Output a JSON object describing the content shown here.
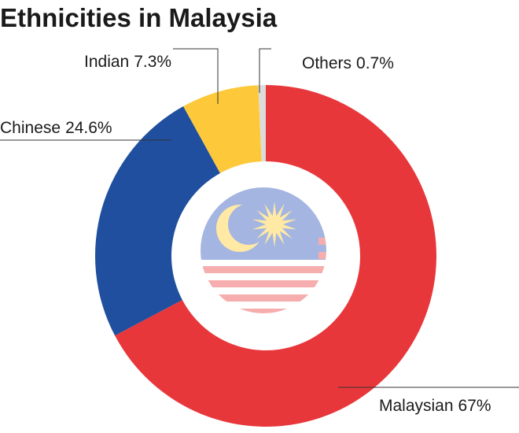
{
  "chart_data": {
    "type": "donut",
    "title": "Ethnicities in Malaysia",
    "categories": [
      "Malaysian",
      "Chinese",
      "Indian",
      "Others"
    ],
    "values": [
      67,
      24.6,
      7.3,
      0.7
    ],
    "value_labels": [
      "67%",
      "24.6%",
      "7.3%",
      "0.7%"
    ],
    "colors": [
      "#e8373b",
      "#1f4f9e",
      "#fdc93b",
      "#dcdcdc"
    ]
  }
}
